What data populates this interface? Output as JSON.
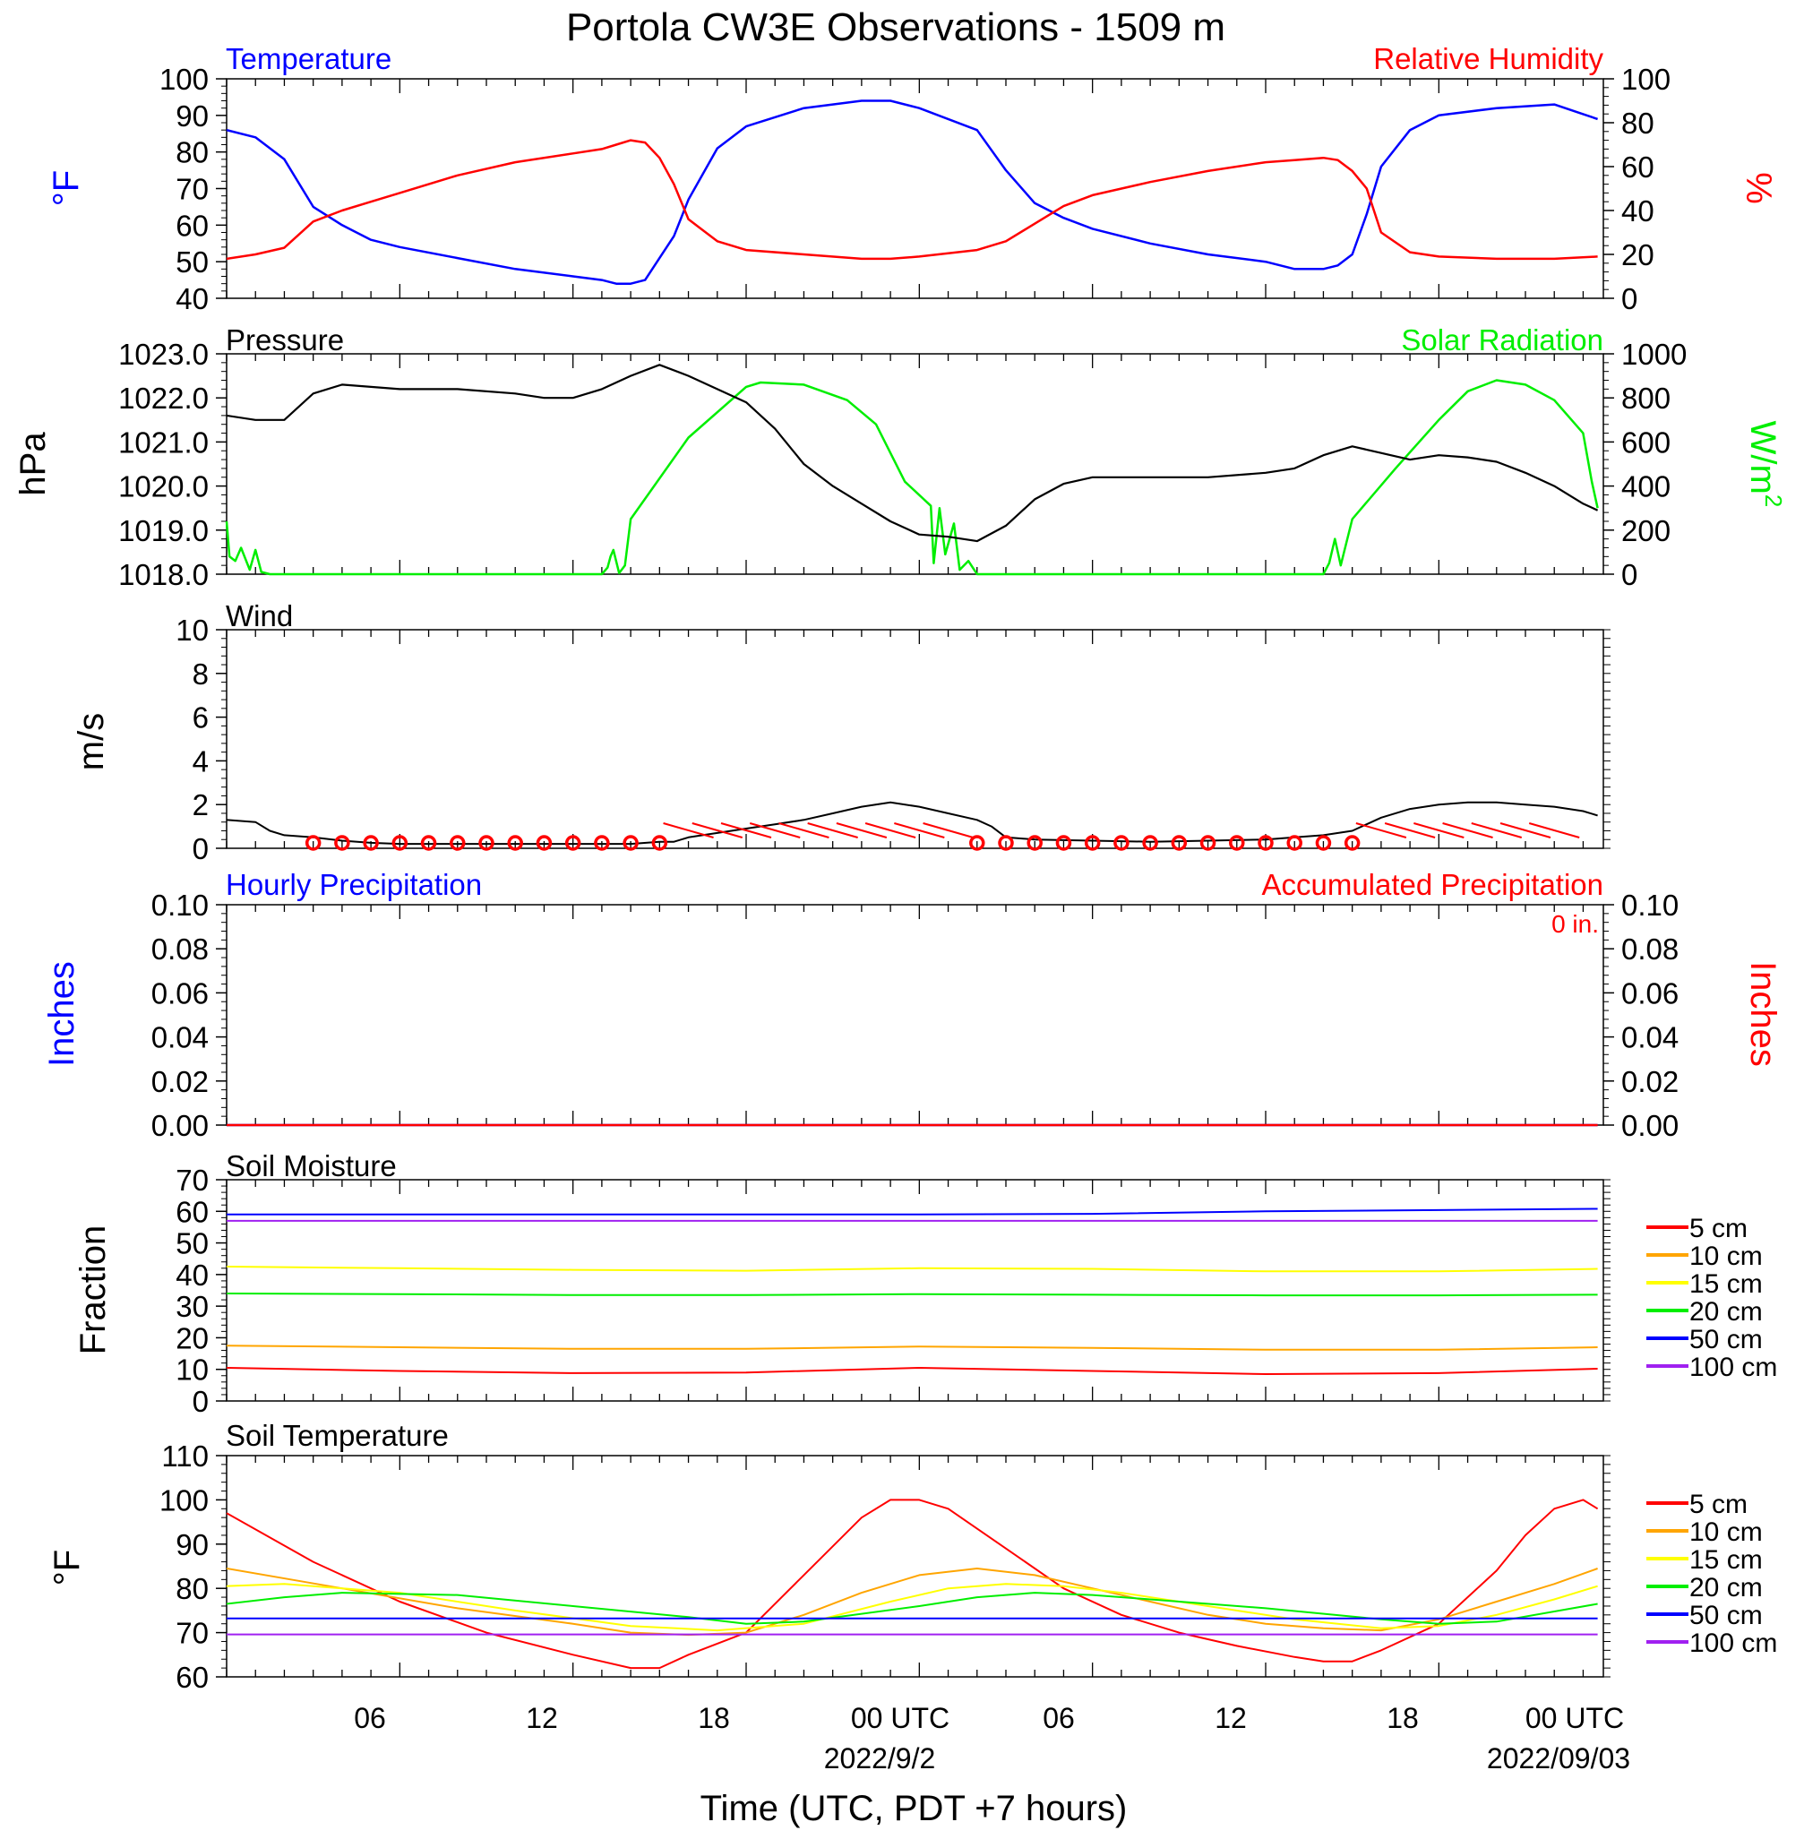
{
  "title": "Portola CW3E Observations - 1509 m",
  "x_axis": {
    "label": "Time (UTC, PDT +7 hours)",
    "ticks": [
      "06",
      "12",
      "18",
      "00 UTC",
      "06",
      "12",
      "18",
      "00 UTC"
    ],
    "dates": [
      "2022/9/2",
      "2022/09/03"
    ]
  },
  "colors": {
    "temperature": "#0000ff",
    "humidity": "#ff0000",
    "pressure": "#000000",
    "solar": "#00ee00",
    "wind": "#000000",
    "barb": "#ff0000",
    "hourly_precip": "#0000ff",
    "accum_precip": "#ff0000",
    "depth_5": "#ff0000",
    "depth_10": "#ffa500",
    "depth_15": "#ffff00",
    "depth_20": "#00ee00",
    "depth_50": "#0000ff",
    "depth_100": "#a020f0"
  },
  "chart_data": [
    {
      "type": "line",
      "panel": "temp_rh",
      "title_left": "Temperature",
      "title_right": "Relative Humidity",
      "ylabel_left": "°F",
      "ylabel_right": "%",
      "ylim_left": [
        40,
        100
      ],
      "ylim_right": [
        0,
        100
      ],
      "yticks_left": [
        "40",
        "50",
        "60",
        "70",
        "80",
        "90",
        "100"
      ],
      "yticks_right": [
        "0",
        "20",
        "40",
        "60",
        "80",
        "100"
      ],
      "x_hours": [
        0,
        1,
        2,
        3,
        4,
        5,
        6,
        8,
        10,
        12,
        13,
        13.5,
        14,
        14.5,
        15,
        15.5,
        16,
        17,
        18,
        20,
        22,
        23,
        24,
        26,
        27,
        28,
        29,
        30,
        32,
        34,
        36,
        37,
        38,
        38.5,
        39,
        39.5,
        40,
        41,
        42,
        44,
        46,
        47.5
      ],
      "series": [
        {
          "name": "Temperature",
          "axis": "left",
          "values": [
            86,
            84,
            78,
            65,
            60,
            56,
            54,
            51,
            48,
            46,
            45,
            44,
            44,
            45,
            51,
            57,
            67,
            81,
            87,
            92,
            94,
            94,
            92,
            86,
            75,
            66,
            62,
            59,
            55,
            52,
            50,
            48,
            48,
            49,
            52,
            63,
            76,
            86,
            90,
            92,
            93,
            89
          ]
        },
        {
          "name": "Relative Humidity",
          "axis": "right",
          "values": [
            18,
            20,
            23,
            35,
            40,
            44,
            48,
            56,
            62,
            66,
            68,
            70,
            72,
            71,
            64,
            52,
            36,
            26,
            22,
            20,
            18,
            18,
            19,
            22,
            26,
            34,
            42,
            47,
            53,
            58,
            62,
            63,
            64,
            63,
            58,
            50,
            30,
            21,
            19,
            18,
            18,
            19
          ]
        }
      ]
    },
    {
      "type": "line",
      "panel": "pressure_solar",
      "title_left": "Pressure",
      "title_right": "Solar Radiation",
      "ylabel_left": "hPa",
      "ylabel_right": "W/m",
      "ylabel_right_sup": "2",
      "ylim_left": [
        1018,
        1023
      ],
      "ylim_right": [
        0,
        1000
      ],
      "yticks_left": [
        "1018.0",
        "1019.0",
        "1020.0",
        "1021.0",
        "1022.0",
        "1023.0"
      ],
      "yticks_right": [
        "0",
        "200",
        "400",
        "600",
        "800",
        "1000"
      ],
      "series": [
        {
          "name": "Pressure",
          "axis": "left",
          "x_hours": [
            0,
            1,
            2,
            3,
            4,
            6,
            8,
            10,
            11,
            12,
            13,
            14,
            15,
            16,
            17,
            18,
            19,
            20,
            21,
            22,
            23,
            24,
            25,
            26,
            27,
            28,
            29,
            30,
            32,
            34,
            36,
            37,
            38,
            39,
            40,
            41,
            42,
            43,
            44,
            45,
            46,
            47,
            47.5
          ],
          "values": [
            1021.6,
            1021.5,
            1021.5,
            1022.1,
            1022.3,
            1022.2,
            1022.2,
            1022.1,
            1022.0,
            1022.0,
            1022.2,
            1022.5,
            1022.75,
            1022.5,
            1022.2,
            1021.9,
            1021.3,
            1020.5,
            1020.0,
            1019.6,
            1019.2,
            1018.9,
            1018.85,
            1018.75,
            1019.1,
            1019.7,
            1020.05,
            1020.2,
            1020.2,
            1020.2,
            1020.3,
            1020.4,
            1020.7,
            1020.9,
            1020.75,
            1020.6,
            1020.7,
            1020.65,
            1020.55,
            1020.3,
            1020.0,
            1019.6,
            1019.45
          ]
        },
        {
          "name": "Solar Radiation",
          "axis": "right",
          "x_hours": [
            0,
            0.1,
            0.3,
            0.5,
            0.8,
            1,
            1.2,
            1.5,
            13,
            13.2,
            13.3,
            13.4,
            13.6,
            13.8,
            14,
            16,
            18,
            18.5,
            20,
            21.5,
            22.5,
            23.5,
            24.4,
            24.5,
            24.7,
            24.9,
            25.2,
            25.4,
            25.7,
            26,
            38,
            38.2,
            38.4,
            38.6,
            39,
            40.5,
            42,
            43,
            44,
            45,
            46,
            47,
            47.3,
            47.5
          ],
          "values": [
            240,
            80,
            60,
            120,
            20,
            110,
            10,
            0,
            0,
            30,
            80,
            110,
            5,
            40,
            250,
            620,
            850,
            870,
            860,
            790,
            680,
            420,
            310,
            50,
            300,
            90,
            230,
            20,
            60,
            0,
            0,
            50,
            160,
            40,
            250,
            480,
            700,
            830,
            880,
            860,
            790,
            640,
            420,
            300
          ]
        }
      ]
    },
    {
      "type": "line",
      "panel": "wind",
      "title_left": "Wind",
      "ylabel_left": "m/s",
      "ylim_left": [
        0,
        10
      ],
      "yticks_left": [
        "0",
        "2",
        "4",
        "6",
        "8",
        "10"
      ],
      "series": [
        {
          "name": "Wind",
          "axis": "left",
          "x_hours": [
            0,
            1,
            1.5,
            2,
            3,
            4,
            5,
            6,
            8,
            10,
            12,
            14,
            15,
            15.5,
            16,
            17,
            18,
            19,
            20,
            21,
            22,
            23,
            24,
            25,
            26,
            26.5,
            27,
            28,
            30,
            32,
            34,
            36,
            37,
            38,
            39,
            40,
            41,
            42,
            43,
            44,
            45,
            46,
            47,
            47.5
          ],
          "values": [
            1.3,
            1.2,
            0.8,
            0.6,
            0.5,
            0.35,
            0.25,
            0.2,
            0.2,
            0.2,
            0.2,
            0.2,
            0.3,
            0.3,
            0.5,
            0.7,
            0.9,
            1.1,
            1.3,
            1.6,
            1.9,
            2.1,
            1.9,
            1.6,
            1.3,
            1.0,
            0.5,
            0.4,
            0.35,
            0.3,
            0.35,
            0.4,
            0.5,
            0.6,
            0.8,
            1.4,
            1.8,
            2.0,
            2.1,
            2.1,
            2.0,
            1.9,
            1.7,
            1.5
          ]
        }
      ],
      "barbs": {
        "x_hours": [
          3,
          4,
          5,
          6,
          7,
          8,
          9,
          10,
          11,
          12,
          13,
          14,
          15,
          16,
          17,
          18,
          19,
          20,
          21,
          22,
          23,
          24,
          25,
          26,
          27,
          28,
          29,
          30,
          31,
          32,
          33,
          34,
          35,
          36,
          37,
          38,
          39,
          40,
          41,
          42,
          43,
          44,
          45,
          46
        ],
        "calm": [
          true,
          true,
          true,
          true,
          true,
          true,
          true,
          true,
          true,
          true,
          true,
          true,
          true,
          false,
          false,
          false,
          false,
          false,
          false,
          false,
          false,
          false,
          false,
          true,
          true,
          true,
          true,
          true,
          true,
          true,
          true,
          true,
          true,
          true,
          true,
          true,
          true,
          false,
          false,
          false,
          false,
          false,
          false,
          false
        ]
      }
    },
    {
      "type": "line",
      "panel": "precipitation",
      "title_left": "Hourly Precipitation",
      "title_right": "Accumulated Precipitation",
      "annotation": "0 in.",
      "ylabel_left": "Inches",
      "ylabel_right": "Inches",
      "ylim_left": [
        0,
        0.1
      ],
      "ylim_right": [
        0,
        0.1
      ],
      "yticks_left": [
        "0.00",
        "0.02",
        "0.04",
        "0.06",
        "0.08",
        "0.10"
      ],
      "yticks_right": [
        "0.00",
        "0.02",
        "0.04",
        "0.06",
        "0.08",
        "0.10"
      ],
      "series": [
        {
          "name": "Hourly Precipitation",
          "axis": "left",
          "x_hours": [
            0,
            47.5
          ],
          "values": [
            0,
            0
          ]
        },
        {
          "name": "Accumulated Precipitation",
          "axis": "right",
          "x_hours": [
            0,
            47.5
          ],
          "values": [
            0,
            0
          ]
        }
      ]
    },
    {
      "type": "line",
      "panel": "soil_moisture",
      "title_left": "Soil Moisture",
      "ylabel_left": "Fraction",
      "ylim_left": [
        0,
        70
      ],
      "yticks_left": [
        "0",
        "10",
        "20",
        "30",
        "40",
        "50",
        "60",
        "70"
      ],
      "legend": [
        "5 cm",
        "10 cm",
        "15 cm",
        "20 cm",
        "50 cm",
        "100 cm"
      ],
      "x_hours": [
        0,
        6,
        12,
        18,
        24,
        30,
        36,
        42,
        47.5
      ],
      "series": [
        {
          "name": "5 cm",
          "values": [
            10.5,
            9.5,
            8.8,
            9.0,
            10.5,
            9.5,
            8.5,
            8.8,
            10.2
          ]
        },
        {
          "name": "10 cm",
          "values": [
            17.5,
            17.0,
            16.5,
            16.5,
            17.2,
            16.8,
            16.2,
            16.2,
            17.0
          ]
        },
        {
          "name": "15 cm",
          "values": [
            42.5,
            42.0,
            41.5,
            41.2,
            42.0,
            41.8,
            41.0,
            41.0,
            41.8
          ]
        },
        {
          "name": "20 cm",
          "values": [
            34.0,
            33.8,
            33.5,
            33.5,
            33.8,
            33.6,
            33.4,
            33.4,
            33.6
          ]
        },
        {
          "name": "50 cm",
          "values": [
            59.0,
            59.0,
            59.0,
            59.0,
            59.0,
            59.2,
            60.0,
            60.4,
            60.8
          ]
        },
        {
          "name": "100 cm",
          "values": [
            57.0,
            57.0,
            57.0,
            57.0,
            57.0,
            57.0,
            57.0,
            57.0,
            57.0
          ]
        }
      ]
    },
    {
      "type": "line",
      "panel": "soil_temperature",
      "title_left": "Soil Temperature",
      "ylabel_left": "°F",
      "ylim_left": [
        60,
        110
      ],
      "yticks_left": [
        "60",
        "70",
        "80",
        "90",
        "100",
        "110"
      ],
      "legend": [
        "5 cm",
        "10 cm",
        "15 cm",
        "20 cm",
        "50 cm",
        "100 cm"
      ],
      "series": [
        {
          "name": "5 cm",
          "x_hours": [
            0,
            3,
            6,
            9,
            12,
            14,
            15,
            16,
            18,
            20,
            22,
            23,
            24,
            25,
            27,
            29,
            31,
            33,
            35,
            37,
            38,
            39,
            40,
            42,
            44,
            45,
            46,
            47,
            47.5
          ],
          "values": [
            97,
            86,
            77,
            70,
            65,
            62,
            62,
            65,
            70,
            83,
            96,
            100,
            100,
            98,
            89,
            80,
            74,
            70,
            67,
            64.5,
            63.5,
            63.5,
            66,
            72,
            84,
            92,
            98,
            100,
            98
          ]
        },
        {
          "name": "10 cm",
          "x_hours": [
            0,
            4,
            8,
            12,
            14,
            16,
            18,
            20,
            22,
            24,
            26,
            28,
            30,
            32,
            34,
            36,
            38,
            40,
            42,
            44,
            46,
            47.5
          ],
          "values": [
            84.5,
            80,
            75.5,
            72,
            70,
            69.5,
            70,
            74,
            79,
            83,
            84.5,
            83,
            80,
            77,
            74,
            72,
            71,
            70.5,
            73,
            77,
            81,
            84.5
          ]
        },
        {
          "name": "15 cm",
          "x_hours": [
            0,
            2,
            6,
            10,
            14,
            17,
            20,
            23,
            25,
            27,
            29,
            31,
            34,
            37,
            40,
            42,
            44,
            46,
            47.5
          ],
          "values": [
            80.5,
            81,
            79,
            75,
            71.5,
            70.5,
            72,
            77,
            80,
            81,
            80.5,
            79,
            76,
            73,
            71,
            71.5,
            74,
            77.5,
            80.5
          ]
        },
        {
          "name": "20 cm",
          "x_hours": [
            0,
            2,
            4,
            8,
            12,
            16,
            18,
            20,
            24,
            26,
            28,
            30,
            32,
            36,
            40,
            42,
            44,
            47.5
          ],
          "values": [
            76.5,
            78,
            79,
            78.5,
            76,
            73.5,
            72,
            72.5,
            76,
            78,
            79,
            78.5,
            77.5,
            75.5,
            73,
            72,
            72.5,
            76.5
          ]
        },
        {
          "name": "50 cm",
          "x_hours": [
            0,
            47.5
          ],
          "values": [
            73.2,
            73.2
          ]
        },
        {
          "name": "100 cm",
          "x_hours": [
            0,
            47.5
          ],
          "values": [
            69.6,
            69.6
          ]
        }
      ]
    }
  ]
}
